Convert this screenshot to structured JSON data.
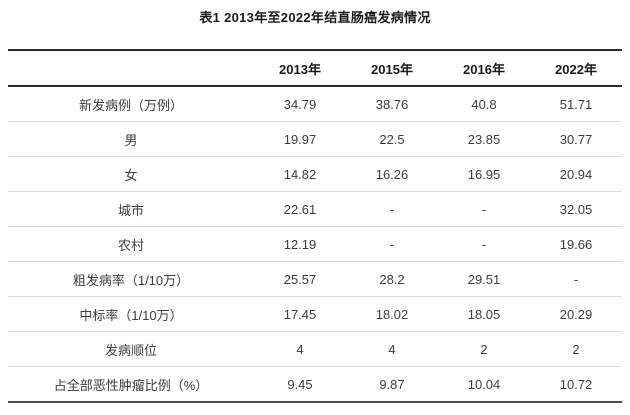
{
  "title": "表1 2013年至2022年结直肠癌发病情况",
  "chart_data": {
    "type": "table",
    "columns": [
      "",
      "2013年",
      "2015年",
      "2016年",
      "2022年"
    ],
    "rows": [
      {
        "label": "新发病例（万例）",
        "values": [
          "34.79",
          "38.76",
          "40.8",
          "51.71"
        ]
      },
      {
        "label": "男",
        "values": [
          "19.97",
          "22.5",
          "23.85",
          "30.77"
        ]
      },
      {
        "label": "女",
        "values": [
          "14.82",
          "16.26",
          "16.95",
          "20.94"
        ]
      },
      {
        "label": "城市",
        "values": [
          "22.61",
          "-",
          "-",
          "32.05"
        ]
      },
      {
        "label": "农村",
        "values": [
          "12.19",
          "-",
          "-",
          "19.66"
        ]
      },
      {
        "label": "粗发病率（1/10万）",
        "values": [
          "25.57",
          "28.2",
          "29.51",
          "-"
        ]
      },
      {
        "label": "中标率（1/10万）",
        "values": [
          "17.45",
          "18.02",
          "18.05",
          "20.29"
        ]
      },
      {
        "label": "发病顺位",
        "values": [
          "4",
          "4",
          "2",
          "2"
        ]
      },
      {
        "label": "占全部恶性肿瘤比例（%）",
        "values": [
          "9.45",
          "9.87",
          "10.04",
          "10.72"
        ]
      }
    ]
  }
}
